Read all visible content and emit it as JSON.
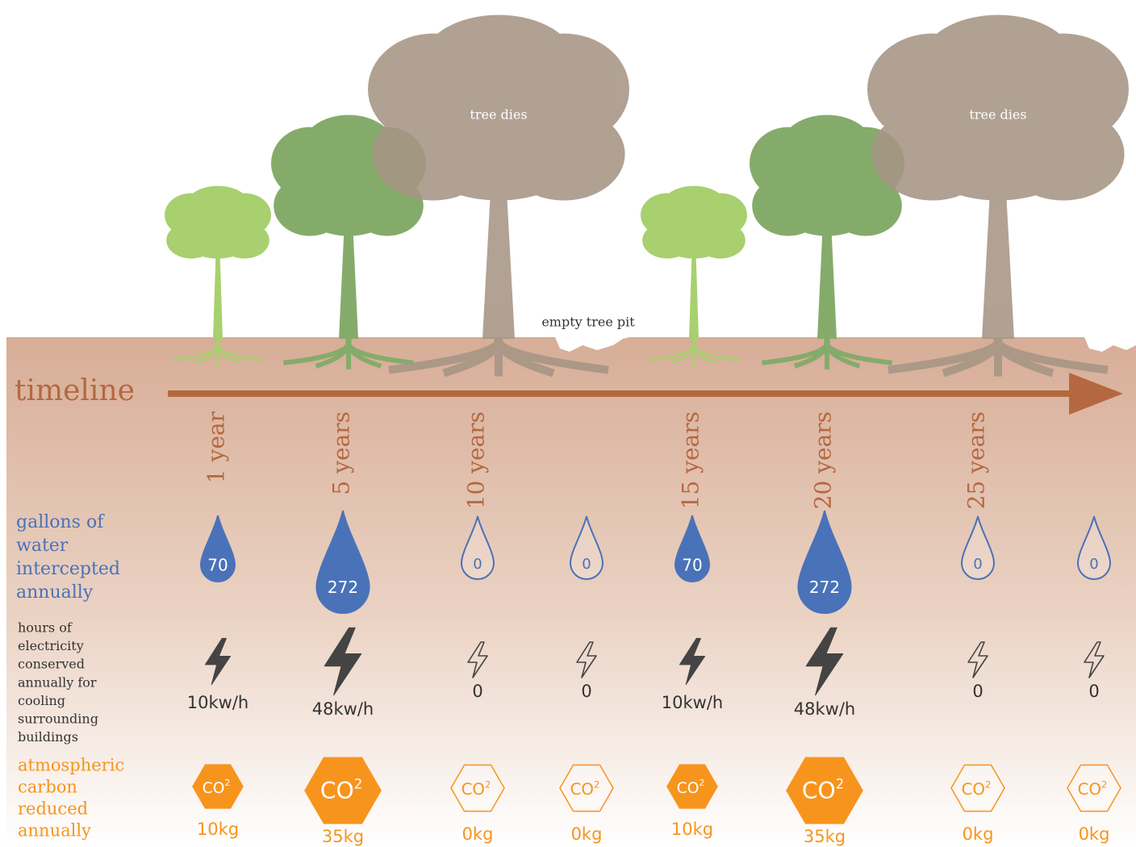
{
  "labels": {
    "timeline": "timeline",
    "tree_dies": [
      "tree dies",
      "tree dies"
    ],
    "empty_pit": "empty tree pit"
  },
  "rows": {
    "water": [
      "gallons of",
      "water",
      "intercepted",
      "annually"
    ],
    "electricity": [
      "hours of",
      "electricity",
      "conserved",
      "annually for",
      "cooling",
      "surrounding",
      "buildings"
    ],
    "carbon": [
      "atmospheric",
      "carbon",
      "reduced",
      "annually"
    ]
  },
  "co2": {
    "base": "CO",
    "sup": "2"
  },
  "columns": [
    {
      "year": "1 year",
      "water": 70,
      "electricity": "10kw/h",
      "carbon": "10kg"
    },
    {
      "year": "5 years",
      "water": 272,
      "electricity": "48kw/h",
      "carbon": "35kg"
    },
    {
      "year": "10 years",
      "water": 0,
      "electricity": "0",
      "carbon": "0kg"
    },
    {
      "year": null,
      "water": 0,
      "electricity": "0",
      "carbon": "0kg"
    },
    {
      "year": "15 years",
      "water": 70,
      "electricity": "10kw/h",
      "carbon": "10kg"
    },
    {
      "year": "20 years",
      "water": 272,
      "electricity": "48kw/h",
      "carbon": "35kg"
    },
    {
      "year": "25 years",
      "water": 0,
      "electricity": "0",
      "carbon": "0kg"
    },
    {
      "year": null,
      "water": 0,
      "electricity": "0",
      "carbon": "0kg"
    }
  ]
}
